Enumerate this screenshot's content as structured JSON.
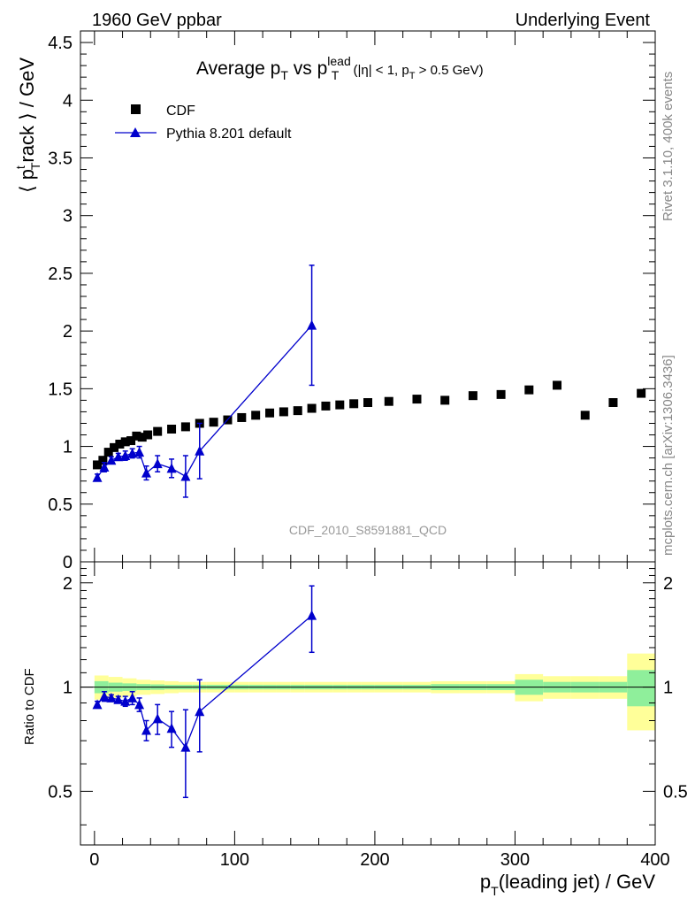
{
  "header": {
    "left": "1960 GeV ppbar",
    "right": "Underlying Event"
  },
  "side_labels": {
    "rivet": "Rivet 3.1.10,  400k events",
    "mcplots": "mcplots.cern.ch [arXiv:1306.3436]"
  },
  "chart_data": [
    {
      "type": "scatter",
      "panel": "main",
      "title": {
        "main": "Average p",
        "sub1": "T",
        "vs": " vs p",
        "sup": "lead",
        "sub2": "T",
        "cuts_a": " (|η| < 1, p",
        "cuts_sub": "T",
        "cuts_b": " > 0.5 GeV)"
      },
      "ylabel": {
        "a": "⟨ p",
        "sup": "t",
        "sub": "T",
        "b": "rack ⟩ / GeV"
      },
      "analysis_label": "CDF_2010_S8591881_QCD",
      "xlim": [
        -10,
        400
      ],
      "ylim": [
        0,
        4.6
      ],
      "yticks": [
        0,
        0.5,
        1,
        1.5,
        2,
        2.5,
        3,
        3.5,
        4,
        4.5
      ],
      "ytick_labels": [
        "0",
        "0.5",
        "1",
        "1.5",
        "2",
        "2.5",
        "3",
        "3.5",
        "4",
        "4.5"
      ],
      "legend": {
        "position": "top-left",
        "entries": [
          "CDF",
          "Pythia 8.201 default"
        ]
      },
      "series": [
        {
          "name": "CDF",
          "color": "#000000",
          "marker": "square",
          "x": [
            2,
            6,
            10,
            14,
            18,
            22,
            26,
            30,
            34,
            38,
            45,
            55,
            65,
            75,
            85,
            95,
            105,
            115,
            125,
            135,
            145,
            155,
            165,
            175,
            185,
            195,
            210,
            230,
            250,
            270,
            290,
            310,
            330,
            350,
            370,
            390
          ],
          "y": [
            0.84,
            0.88,
            0.95,
            0.99,
            1.02,
            1.04,
            1.05,
            1.09,
            1.08,
            1.1,
            1.13,
            1.15,
            1.17,
            1.2,
            1.21,
            1.23,
            1.25,
            1.27,
            1.29,
            1.3,
            1.31,
            1.33,
            1.35,
            1.36,
            1.37,
            1.38,
            1.39,
            1.41,
            1.4,
            1.44,
            1.45,
            1.49,
            1.53,
            1.27,
            1.38,
            1.46
          ]
        },
        {
          "name": "Pythia 8.201 default",
          "color": "#0000cc",
          "marker": "triangle",
          "x": [
            2,
            7,
            12,
            17,
            22,
            27,
            32,
            37,
            45,
            55,
            65,
            75,
            155
          ],
          "y": [
            0.73,
            0.82,
            0.88,
            0.91,
            0.92,
            0.94,
            0.95,
            0.77,
            0.85,
            0.81,
            0.74,
            0.96,
            2.05
          ],
          "err": [
            0.03,
            0.04,
            0.03,
            0.03,
            0.04,
            0.04,
            0.05,
            0.06,
            0.07,
            0.08,
            0.18,
            0.24,
            0.52
          ]
        }
      ]
    },
    {
      "type": "scatter",
      "panel": "ratio",
      "ylabel": "Ratio to CDF",
      "xlabel": {
        "a": "p",
        "sub": "T",
        "b": "(leading jet) / GeV"
      },
      "xlim": [
        -10,
        400
      ],
      "ylim": [
        0.35,
        2.3
      ],
      "yscale": "log",
      "yticks": [
        0.5,
        1,
        2
      ],
      "ytick_labels": [
        "0.5",
        "1",
        "2"
      ],
      "xticks": [
        0,
        100,
        200,
        300,
        400
      ],
      "xtick_labels": [
        "0",
        "100",
        "200",
        "300",
        "400"
      ],
      "bands": {
        "x_edges": [
          0,
          10,
          20,
          30,
          40,
          50,
          60,
          70,
          80,
          90,
          100,
          110,
          120,
          130,
          140,
          150,
          160,
          170,
          180,
          190,
          200,
          220,
          240,
          260,
          280,
          300,
          320,
          340,
          360,
          380,
          400
        ],
        "inner_half_width": [
          0.04,
          0.03,
          0.025,
          0.02,
          0.018,
          0.015,
          0.015,
          0.015,
          0.015,
          0.015,
          0.015,
          0.015,
          0.015,
          0.015,
          0.015,
          0.015,
          0.015,
          0.015,
          0.015,
          0.015,
          0.015,
          0.015,
          0.02,
          0.02,
          0.02,
          0.05,
          0.035,
          0.035,
          0.035,
          0.12
        ],
        "outer_half_width": [
          0.08,
          0.07,
          0.06,
          0.05,
          0.045,
          0.04,
          0.035,
          0.035,
          0.035,
          0.035,
          0.035,
          0.035,
          0.035,
          0.035,
          0.035,
          0.035,
          0.035,
          0.035,
          0.035,
          0.035,
          0.035,
          0.035,
          0.04,
          0.04,
          0.04,
          0.09,
          0.075,
          0.075,
          0.075,
          0.25
        ],
        "inner_color": "#8fef9b",
        "outer_color": "#ffff99"
      },
      "series": [
        {
          "name": "Pythia 8.201 default",
          "color": "#0000cc",
          "marker": "triangle",
          "x": [
            2,
            7,
            12,
            17,
            22,
            27,
            32,
            37,
            45,
            55,
            65,
            75,
            155
          ],
          "y": [
            0.89,
            0.94,
            0.93,
            0.92,
            0.91,
            0.93,
            0.89,
            0.75,
            0.81,
            0.76,
            0.67,
            0.85,
            1.61
          ],
          "err": [
            0.02,
            0.03,
            0.02,
            0.02,
            0.03,
            0.04,
            0.04,
            0.05,
            0.08,
            0.09,
            0.19,
            0.2,
            0.35
          ]
        }
      ]
    }
  ]
}
